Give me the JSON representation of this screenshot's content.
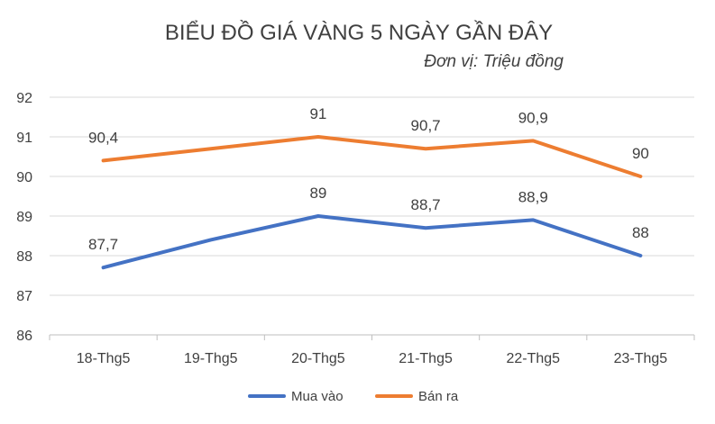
{
  "chart_data": {
    "type": "line",
    "title": "BIỂU ĐỒ GIÁ VÀNG 5 NGÀY GẦN ĐÂY",
    "subtitle": "Đơn vị: Triệu đồng",
    "categories": [
      "18-Thg5",
      "19-Thg5",
      "20-Thg5",
      "21-Thg5",
      "22-Thg5",
      "23-Thg5"
    ],
    "series": [
      {
        "name": "Mua vào",
        "color": "#4472c4",
        "values": [
          87.7,
          88.4,
          89,
          88.7,
          88.9,
          88
        ],
        "labels": [
          "87,7",
          "",
          "89",
          "88,7",
          "88,9",
          "88"
        ]
      },
      {
        "name": "Bán ra",
        "color": "#ed7d31",
        "values": [
          90.4,
          90.7,
          91,
          90.7,
          90.9,
          90
        ],
        "labels": [
          "90,4",
          "",
          "91",
          "90,7",
          "90,9",
          "90"
        ]
      }
    ],
    "ylim": [
      86,
      92
    ],
    "yticks": [
      "86",
      "87",
      "88",
      "89",
      "90",
      "91",
      "92"
    ],
    "grid": true,
    "legend_position": "bottom"
  }
}
